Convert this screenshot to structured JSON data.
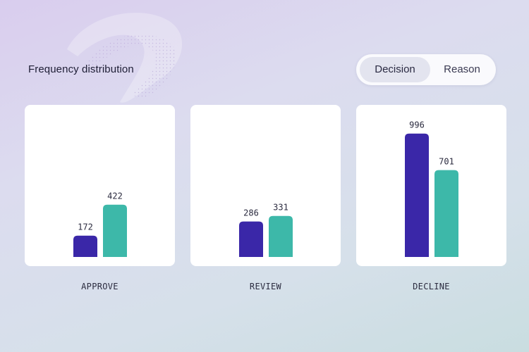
{
  "header": {
    "title": "Frequency distribution"
  },
  "toggle": {
    "options": [
      "Decision",
      "Reason"
    ],
    "active": "Decision"
  },
  "colors": {
    "series_1": "#3a27a8",
    "series_2": "#3db8a9"
  },
  "chart_data": {
    "type": "bar",
    "title": "Frequency distribution",
    "categories": [
      "APPROVE",
      "REVIEW",
      "DECLINE"
    ],
    "series": [
      {
        "values": [
          172,
          286,
          996
        ]
      },
      {
        "values": [
          422,
          331,
          701
        ]
      }
    ],
    "ylim": [
      0,
      1000
    ],
    "grid": false,
    "legend": "none"
  }
}
